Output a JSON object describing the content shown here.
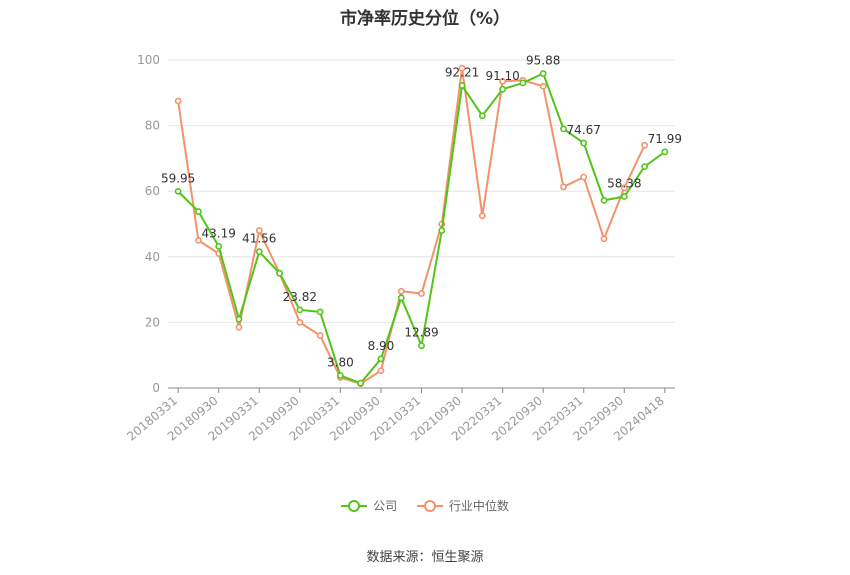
{
  "chart_data": {
    "type": "line",
    "title": "市净率历史分位（%）",
    "ylim": [
      0,
      100
    ],
    "yticks": [
      "0",
      "20",
      "40",
      "60",
      "80",
      "100"
    ],
    "grid": true,
    "legend_position": "bottom",
    "x_tick_labels": [
      "20180331",
      "20180930",
      "20190331",
      "20190930",
      "20200331",
      "20200930",
      "20210331",
      "20210930",
      "20220331",
      "20220930",
      "20230331",
      "20230930",
      "20240418"
    ],
    "series": [
      {
        "name": "公司",
        "color": "#52c41a",
        "values": [
          59.95,
          53.8,
          43.19,
          21.0,
          41.56,
          35.0,
          23.82,
          23.2,
          3.8,
          1.5,
          8.9,
          27.5,
          12.89,
          48.0,
          92.21,
          83.0,
          91.1,
          93.0,
          95.88,
          79.0,
          74.67,
          57.2,
          58.38,
          67.5,
          71.99
        ],
        "labels": {
          "0": "59.95",
          "2": "43.19",
          "4": "41.56",
          "6": "23.82",
          "8": "3.80",
          "10": "8.90",
          "12": "12.89",
          "14": "92.21",
          "16": "91.10",
          "18": "95.88",
          "20": "74.67",
          "22": "58.38",
          "24": "71.99"
        }
      },
      {
        "name": "行业中位数",
        "color": "#f4926b",
        "values": [
          87.5,
          45.0,
          41.0,
          18.5,
          48.0,
          35.0,
          20.0,
          16.0,
          3.2,
          1.3,
          5.3,
          29.5,
          28.8,
          50.0,
          97.5,
          52.5,
          93.5,
          93.8,
          92.0,
          61.3,
          64.3,
          45.5,
          61.0,
          74.0
        ]
      }
    ]
  },
  "source_text": "数据来源：恒生聚源"
}
